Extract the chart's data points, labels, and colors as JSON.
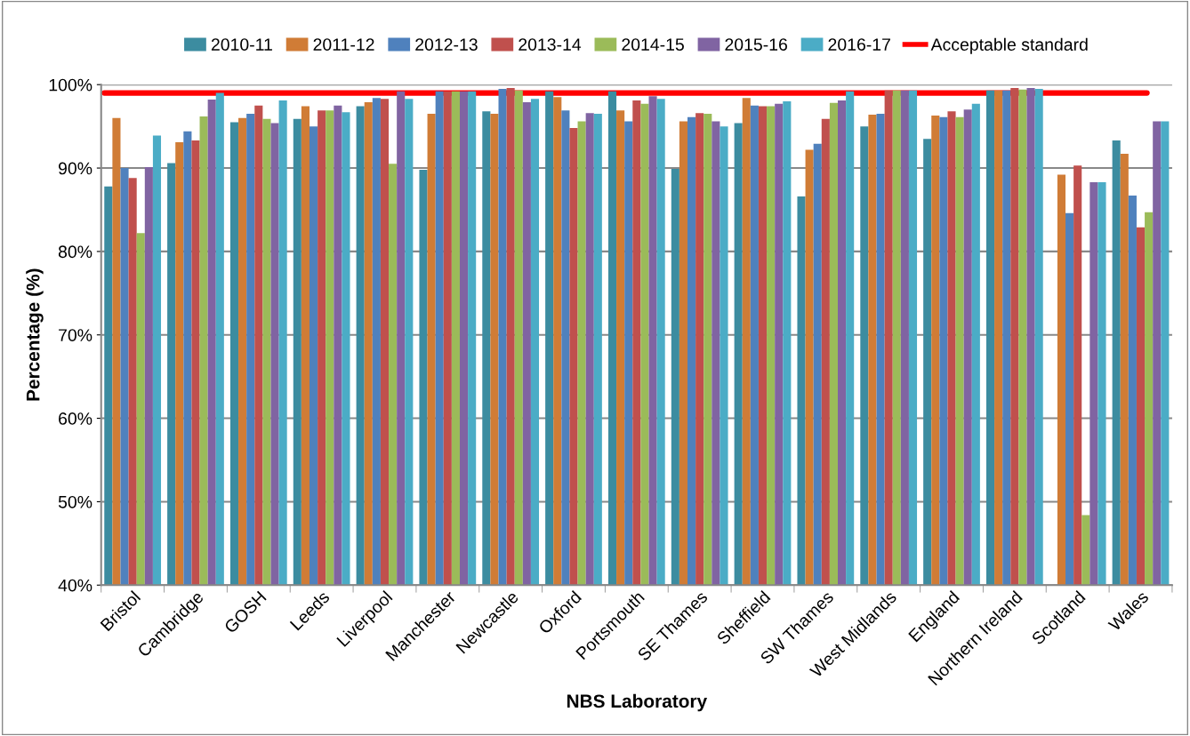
{
  "chart_data": {
    "type": "bar",
    "xlabel": "NBS Laboratory",
    "ylabel": "Percentage (%)",
    "categories": [
      "Bristol",
      "Cambridge",
      "GOSH",
      "Leeds",
      "Liverpool",
      "Manchester",
      "Newcastle",
      "Oxford",
      "Portsmouth",
      "SE Thames",
      "Sheffield",
      "SW Thames",
      "West Midlands",
      "England",
      "Northern Ireland",
      "Scotland",
      "Wales"
    ],
    "series": [
      {
        "name": "2010-11",
        "color": "#3c8ca0",
        "values": [
          87.8,
          90.6,
          95.5,
          95.9,
          97.4,
          89.8,
          96.8,
          99.2,
          99.2,
          89.9,
          95.4,
          86.6,
          95.0,
          93.5,
          99.3,
          null,
          93.3
        ]
      },
      {
        "name": "2011-12",
        "color": "#d07c36",
        "values": [
          96.0,
          93.1,
          96.0,
          97.4,
          97.9,
          96.5,
          96.5,
          98.5,
          96.9,
          95.6,
          98.4,
          92.2,
          96.4,
          96.3,
          99.3,
          89.2,
          91.7
        ]
      },
      {
        "name": "2012-13",
        "color": "#4f81bd",
        "values": [
          90.0,
          94.4,
          96.5,
          95.0,
          98.4,
          99.2,
          99.5,
          96.9,
          95.6,
          96.1,
          97.5,
          92.9,
          96.5,
          96.1,
          99.3,
          84.6,
          86.7
        ]
      },
      {
        "name": "2013-14",
        "color": "#c0504d",
        "values": [
          88.8,
          93.3,
          97.5,
          96.9,
          98.3,
          99.2,
          99.6,
          94.8,
          98.1,
          96.6,
          97.4,
          95.9,
          99.3,
          96.8,
          99.6,
          90.3,
          82.9
        ]
      },
      {
        "name": "2014-15",
        "color": "#9bbb59",
        "values": [
          82.2,
          96.2,
          95.9,
          96.9,
          90.5,
          99.2,
          99.3,
          95.6,
          97.7,
          96.5,
          97.4,
          97.8,
          99.3,
          96.1,
          99.4,
          48.4,
          84.7
        ]
      },
      {
        "name": "2015-16",
        "color": "#8064a2",
        "values": [
          90.1,
          98.2,
          95.4,
          97.5,
          99.2,
          99.2,
          97.9,
          96.6,
          98.6,
          95.6,
          97.7,
          98.1,
          99.3,
          97.0,
          99.6,
          88.3,
          95.6
        ]
      },
      {
        "name": "2016-17",
        "color": "#4bacc6",
        "values": [
          93.9,
          99.0,
          98.1,
          96.7,
          98.3,
          99.2,
          98.3,
          96.5,
          98.3,
          95.0,
          98.0,
          99.2,
          99.3,
          97.7,
          99.5,
          88.3,
          95.6
        ]
      }
    ],
    "ref_lines": [
      {
        "axis": "y",
        "value": 99,
        "label": "Acceptable standard",
        "color": "#ff0000"
      }
    ],
    "ylim": [
      40,
      100
    ],
    "yticks": [
      {
        "value": 40,
        "label": "40%"
      },
      {
        "value": 50,
        "label": "50%"
      },
      {
        "value": 60,
        "label": "60%"
      },
      {
        "value": 70,
        "label": "70%"
      },
      {
        "value": 80,
        "label": "80%"
      },
      {
        "value": 90,
        "label": "90%"
      },
      {
        "value": 100,
        "label": "100%"
      }
    ],
    "grid": "y",
    "legend": "top"
  }
}
